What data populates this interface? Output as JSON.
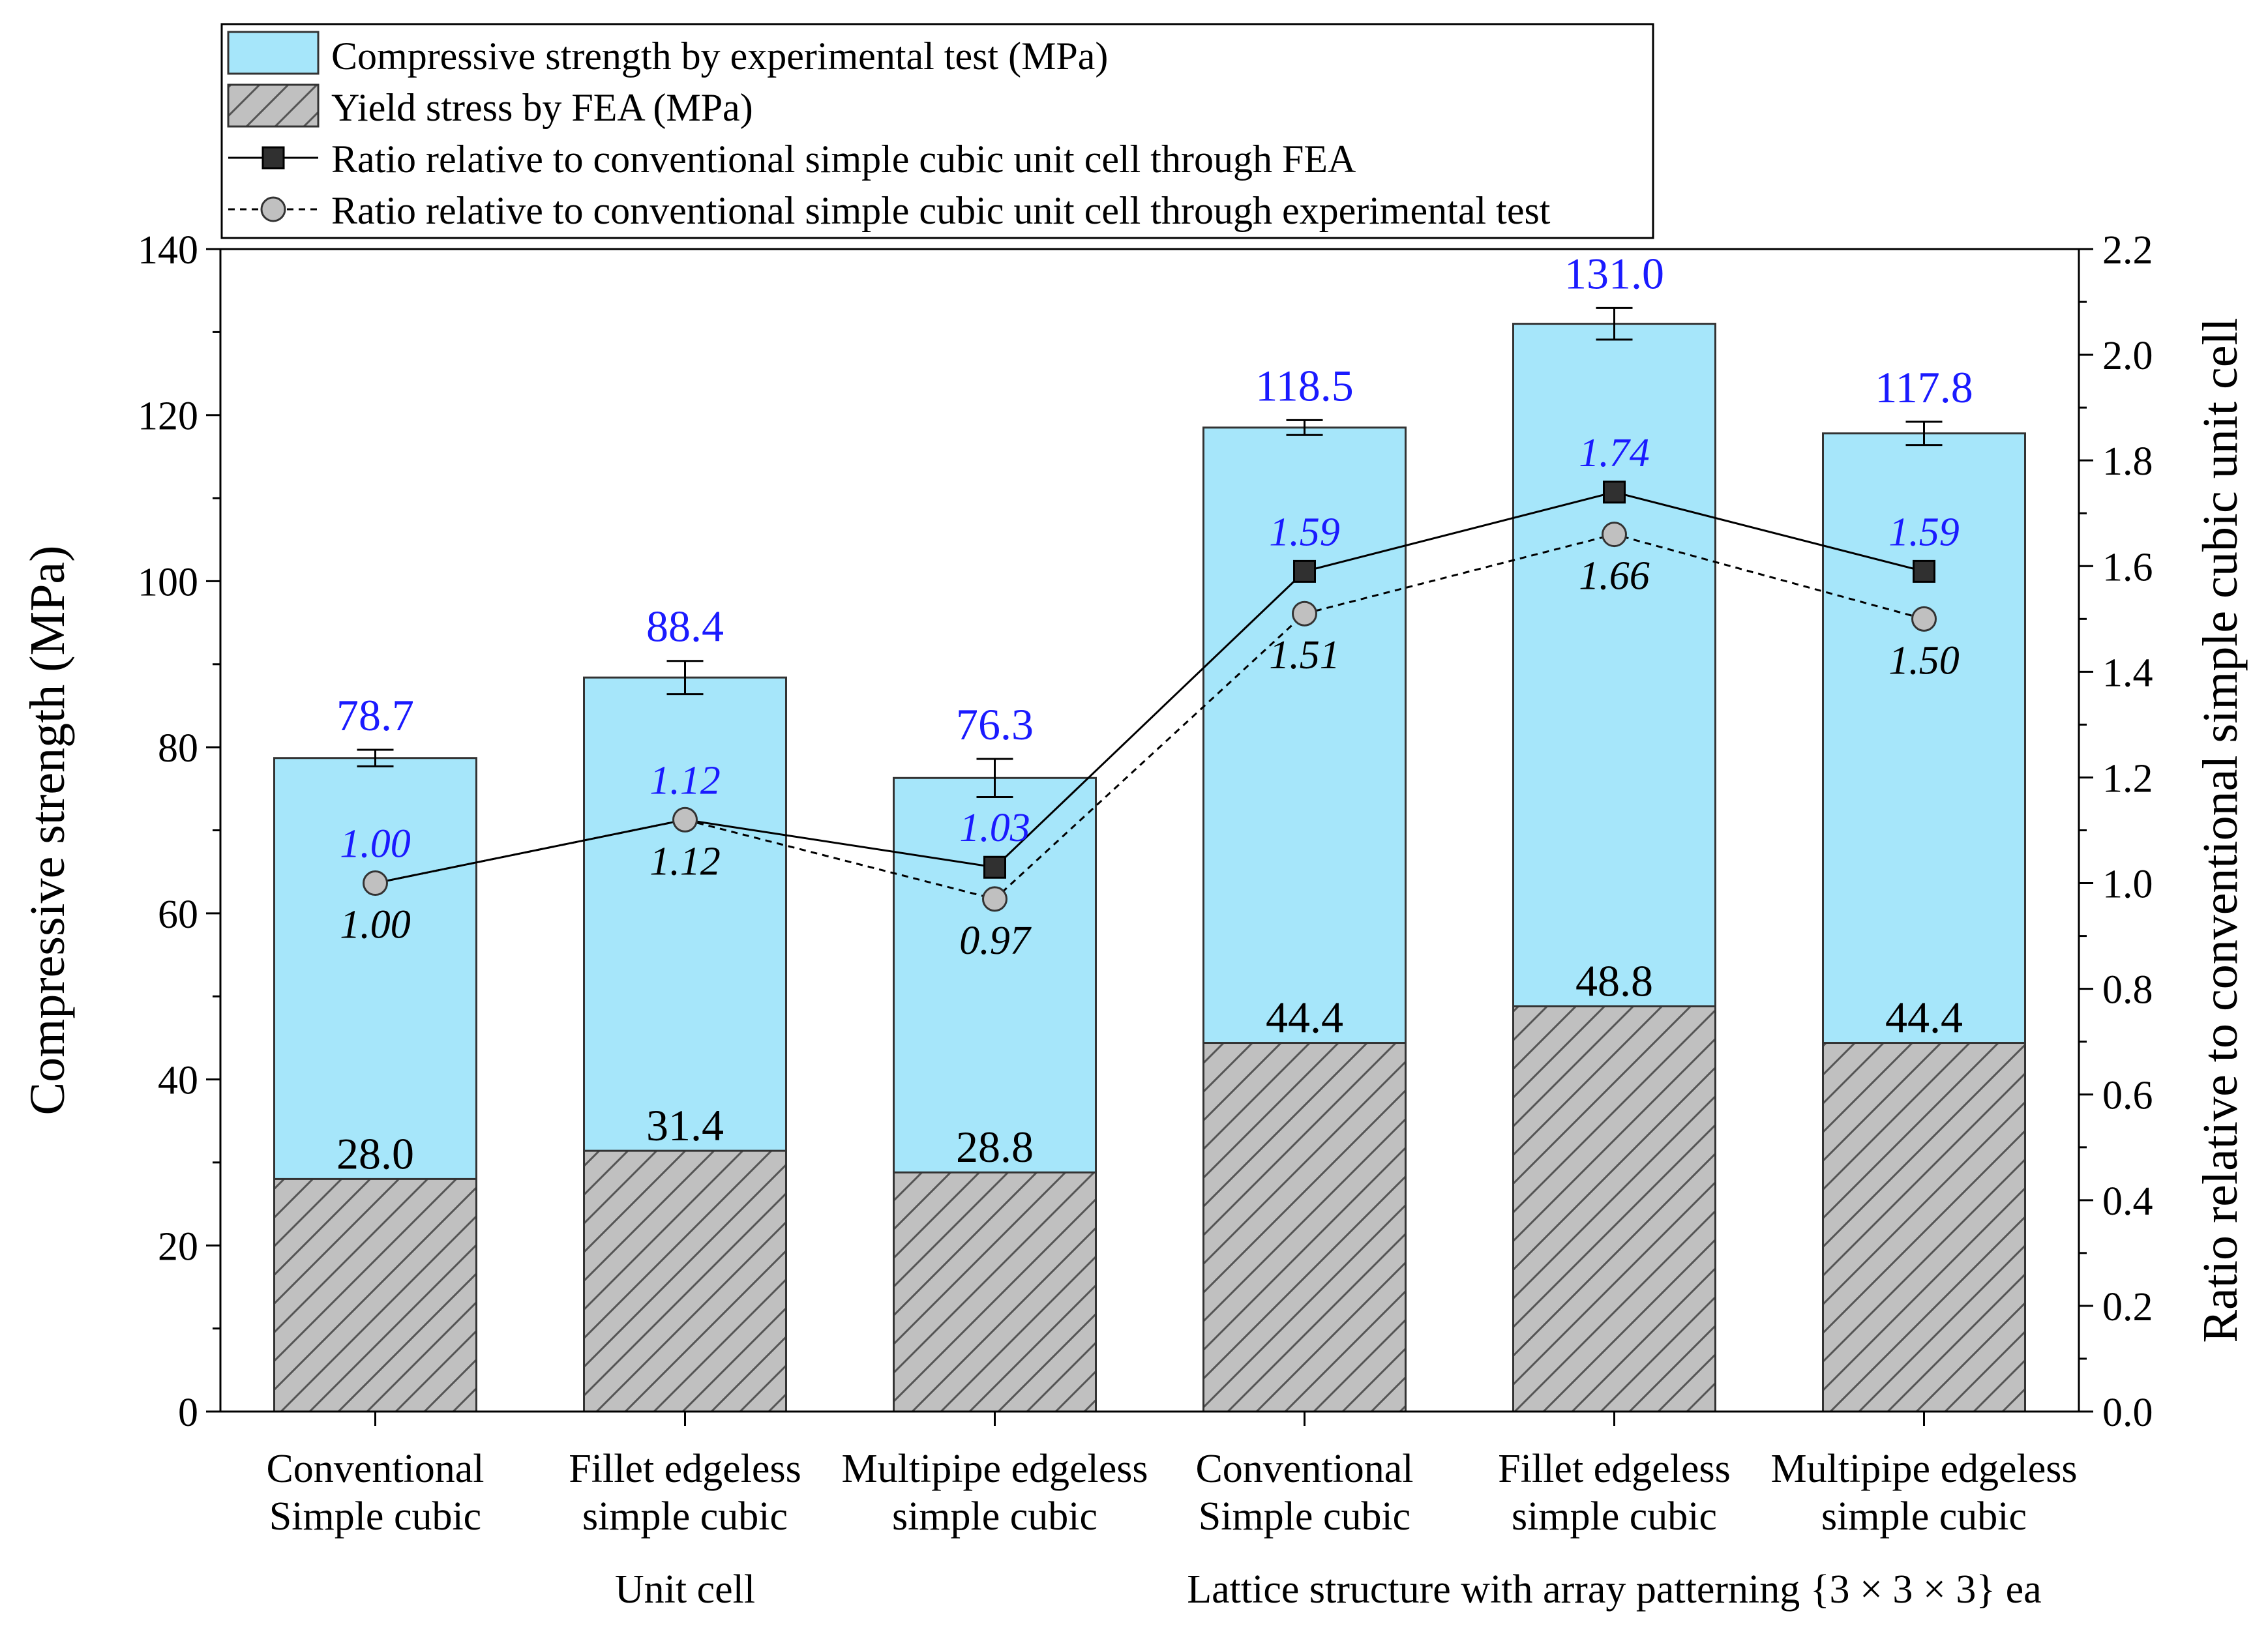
{
  "chart_data": {
    "type": "bar",
    "categories": [
      [
        "Conventional",
        "Simple cubic"
      ],
      [
        "Fillet edgeless",
        "simple cubic"
      ],
      [
        "Multipipe edgeless",
        "simple cubic"
      ],
      [
        "Conventional",
        "Simple cubic"
      ],
      [
        "Fillet edgeless",
        "simple cubic"
      ],
      [
        "Multipipe edgeless",
        "simple cubic"
      ]
    ],
    "groups": [
      {
        "label": "Unit cell",
        "span": [
          0,
          2
        ]
      },
      {
        "label": "Lattice structure with array patterning {3 × 3 × 3} ea",
        "span": [
          3,
          5
        ]
      }
    ],
    "ylabel": "Compressive strength (MPa)",
    "y2label": "Ratio relative to conventional simple cubic unit cell",
    "ylim": [
      0,
      140
    ],
    "y2lim": [
      0.0,
      2.2
    ],
    "yticks": [
      "0",
      "20",
      "40",
      "60",
      "80",
      "100",
      "120",
      "140"
    ],
    "y2ticks": [
      "0.0",
      "0.2",
      "0.4",
      "0.6",
      "0.8",
      "1.0",
      "1.2",
      "1.4",
      "1.6",
      "1.8",
      "2.0",
      "2.2"
    ],
    "legend": {
      "placement": "top-left",
      "entries": [
        "Compressive strength by experimental test (MPa)",
        "Yield stress by FEA (MPa)",
        "Ratio relative to conventional simple cubic unit cell through FEA",
        "Ratio relative to conventional simple cubic unit cell through experimental test"
      ]
    },
    "series": [
      {
        "name": "Compressive strength by experimental test (MPa)",
        "kind": "bar",
        "values": [
          78.7,
          88.4,
          76.3,
          118.5,
          131.0,
          117.8
        ],
        "labels": [
          "78.7",
          "88.4",
          "76.3",
          "118.5",
          "131.0",
          "117.8"
        ],
        "error": [
          1.0,
          2.0,
          2.3,
          0.9,
          1.9,
          1.4
        ],
        "color": "#a6e6fa"
      },
      {
        "name": "Yield stress by FEA (MPa)",
        "kind": "bar-hatched",
        "values": [
          28.0,
          31.4,
          28.8,
          44.4,
          48.8,
          44.4
        ],
        "labels": [
          "28.0",
          "31.4",
          "28.8",
          "44.4",
          "48.8",
          "44.4"
        ],
        "color": "#c0c0c0"
      },
      {
        "name": "Ratio relative to conventional simple cubic unit cell through FEA",
        "kind": "line-square",
        "axis": "right",
        "values": [
          1.0,
          1.12,
          1.03,
          1.59,
          1.74,
          1.59
        ],
        "labels": [
          "1.00",
          "1.12",
          "1.03",
          "1.59",
          "1.74",
          "1.59"
        ],
        "color": "#303030",
        "label_color": "#1a1aff"
      },
      {
        "name": "Ratio relative to conventional simple cubic unit cell through experimental test",
        "kind": "line-circle-dashed",
        "axis": "right",
        "values": [
          1.0,
          1.12,
          0.97,
          1.51,
          1.66,
          1.5
        ],
        "labels": [
          "1.00",
          "1.12",
          "0.97",
          "1.51",
          "1.66",
          "1.50"
        ],
        "color": "#c0c0c0",
        "label_color": "#000000"
      }
    ],
    "colors": {
      "bar_label": "#1a1aff",
      "axis": "#000000"
    }
  }
}
